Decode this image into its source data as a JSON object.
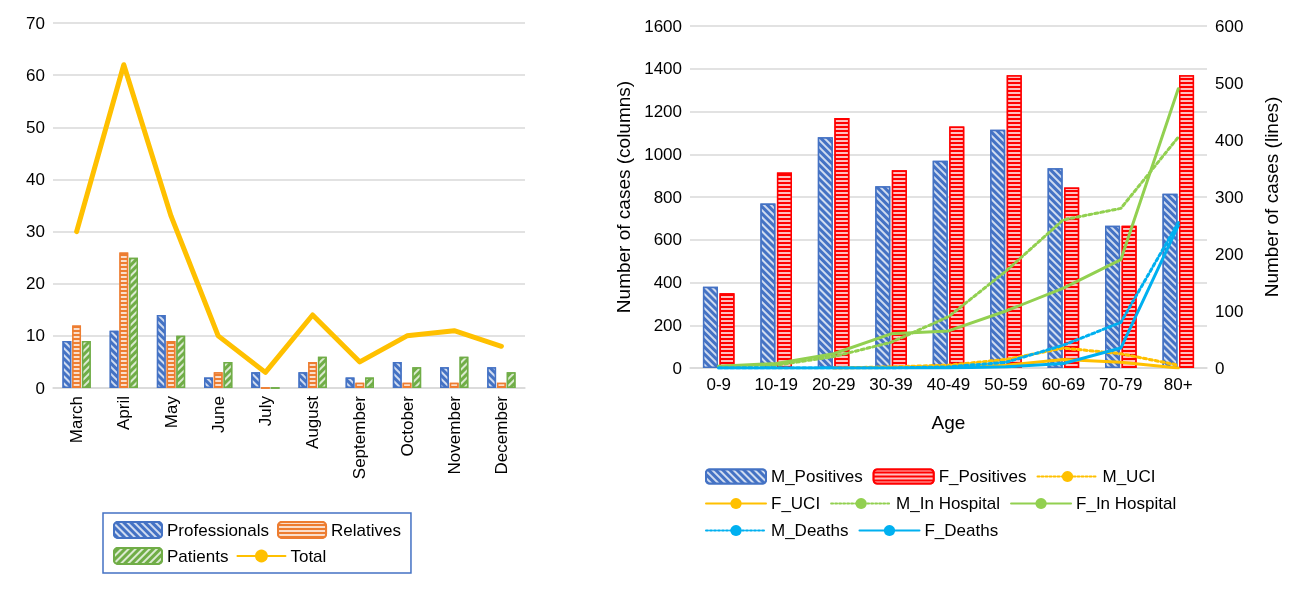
{
  "chart_data": [
    {
      "type": "bar",
      "categories": [
        "March",
        "April",
        "May",
        "June",
        "July",
        "August",
        "September",
        "October",
        "November",
        "December"
      ],
      "series": [
        {
          "name": "Professionals",
          "color": "#4472c4",
          "values": [
            9,
            11,
            14,
            2,
            3,
            3,
            2,
            5,
            4,
            4
          ]
        },
        {
          "name": "Relatives",
          "color": "#ed7d31",
          "values": [
            12,
            26,
            9,
            3,
            0,
            5,
            1,
            1,
            1,
            1
          ]
        },
        {
          "name": "Patients",
          "color": "#70ad47",
          "values": [
            9,
            25,
            10,
            5,
            0,
            6,
            2,
            4,
            6,
            3
          ]
        },
        {
          "name": "Total",
          "type": "line",
          "color": "#ffc000",
          "values": [
            30,
            62,
            33,
            10,
            3,
            14,
            5,
            10,
            11,
            8
          ]
        }
      ],
      "ylim": [
        0,
        70
      ],
      "yticks": [
        0,
        10,
        20,
        30,
        40,
        50,
        60,
        70
      ],
      "grid": "y",
      "legend": "bottom",
      "marker": "none"
    },
    {
      "type": "bar",
      "xlabel": "Age",
      "ylabel": "Number of cases (columns)",
      "y2label": "Number of cases (lines)",
      "categories": [
        "0-9",
        "10-19",
        "20-29",
        "30-39",
        "40-49",
        "50-59",
        "60-69",
        "70-79",
        "80+"
      ],
      "series": [
        {
          "name": "M_Positives",
          "color": "#4472c4",
          "values": [
            380,
            770,
            1080,
            850,
            970,
            1115,
            935,
            665,
            815
          ]
        },
        {
          "name": "F_Positives",
          "color": "#ff0000",
          "values": [
            350,
            915,
            1170,
            925,
            1130,
            1370,
            845,
            665,
            1370
          ]
        },
        {
          "name": "M_UCI",
          "type": "line",
          "axis": "y2",
          "line_style": "dotted",
          "color": "#ffc000",
          "values": [
            null,
            null,
            0,
            2,
            5,
            15,
            35,
            25,
            5
          ]
        },
        {
          "name": "F_UCI",
          "type": "line",
          "axis": "y2",
          "line_style": "solid",
          "color": "#ffc000",
          "values": [
            null,
            null,
            0,
            1,
            2,
            5,
            15,
            10,
            0
          ]
        },
        {
          "name": "M_In Hospital",
          "type": "line",
          "axis": "y2",
          "line_style": "dotted",
          "color": "#92d050",
          "values": [
            3,
            5,
            20,
            45,
            90,
            170,
            260,
            280,
            405
          ]
        },
        {
          "name": "F_In Hospital",
          "type": "line",
          "axis": "y2",
          "line_style": "solid",
          "color": "#92d050",
          "values": [
            3,
            8,
            25,
            60,
            65,
            100,
            140,
            190,
            490
          ]
        },
        {
          "name": "M_Deaths",
          "type": "line",
          "axis": "y2",
          "line_style": "dotted",
          "color": "#00b0f0",
          "values": [
            0,
            0,
            0,
            0,
            2,
            10,
            40,
            80,
            255
          ]
        },
        {
          "name": "F_Deaths",
          "type": "line",
          "axis": "y2",
          "line_style": "solid",
          "color": "#00b0f0",
          "values": [
            0,
            0,
            0,
            0,
            0,
            2,
            8,
            35,
            250
          ]
        }
      ],
      "ylim": [
        0,
        1600
      ],
      "yticks": [
        0,
        200,
        400,
        600,
        800,
        1000,
        1200,
        1400,
        1600
      ],
      "y2lim": [
        0,
        600
      ],
      "y2ticks": [
        0,
        100,
        200,
        300,
        400,
        500,
        600
      ],
      "grid": "y",
      "legend": "bottom",
      "marker": "none"
    }
  ]
}
